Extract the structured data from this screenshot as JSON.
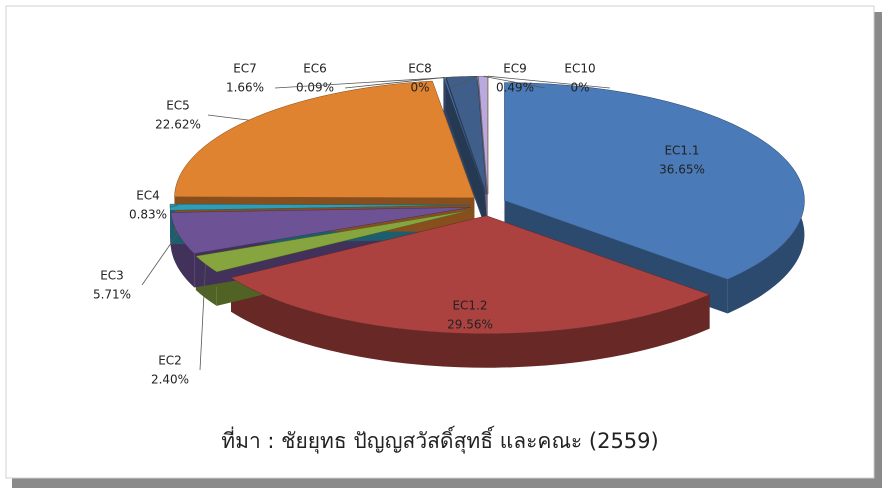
{
  "chart_data": {
    "type": "pie",
    "categories": [
      "EC1.1",
      "EC1.2",
      "EC2",
      "EC3",
      "EC4",
      "EC5",
      "EC6",
      "EC7",
      "EC8",
      "EC9",
      "EC10"
    ],
    "values": [
      36.65,
      29.56,
      2.4,
      5.71,
      0.83,
      22.62,
      0.09,
      1.66,
      0,
      0.49,
      0
    ],
    "value_labels": [
      "36.65%",
      "29.56%",
      "2.40%",
      "5.71%",
      "0.83%",
      "22.62%",
      "0.09%",
      "1.66%",
      "0%",
      "0.49%",
      "0%"
    ],
    "colors": [
      "#4a7ab8",
      "#ab4240",
      "#86a53e",
      "#6e5296",
      "#2f9db5",
      "#e08330",
      "#4e72a6",
      "#3f5f8a",
      "#d88a8a",
      "#b9a9dc",
      "#c9a56a"
    ],
    "caption": "ที่มา : ชัยยุทธ ปัญญสวัสดิ์สุทธิ์ และคณะ (2559)"
  }
}
